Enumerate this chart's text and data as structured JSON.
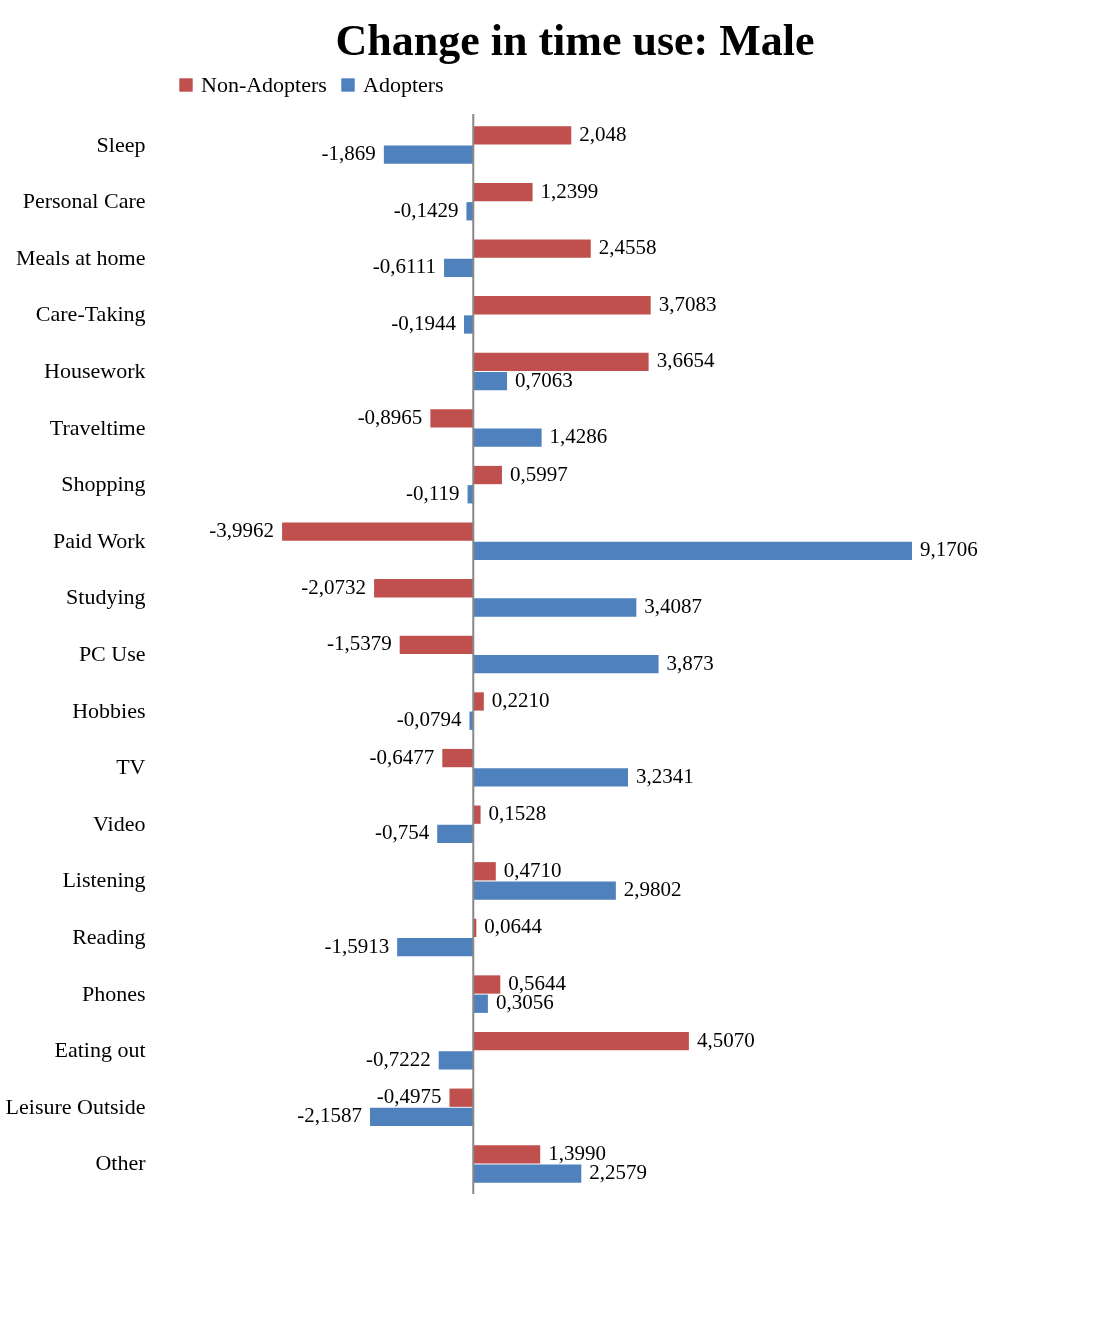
{
  "chart_data": {
    "type": "bar",
    "orientation": "horizontal",
    "title": "Change in time use: Male",
    "legend": "top",
    "categories": [
      "Sleep",
      "Personal Care",
      "Meals at home",
      "Care-Taking",
      "Housework",
      "Traveltime",
      "Shopping",
      "Paid Work",
      "Studying",
      "PC Use",
      "Hobbies",
      "TV",
      "Video",
      "Listening",
      "Reading",
      "Phones",
      "Eating out",
      "Leisure Outside",
      "Other"
    ],
    "series": [
      {
        "name": "Non-Adopters",
        "color": "#c0504d",
        "values": [
          2.048,
          1.2399,
          2.4558,
          3.7083,
          3.6654,
          -0.8965,
          0.5997,
          -3.9962,
          -2.0732,
          -1.5379,
          0.221,
          -0.6477,
          0.1528,
          0.471,
          0.0644,
          0.5644,
          4.507,
          -0.4975,
          1.399
        ],
        "value_labels": [
          "2,048",
          "1,2399",
          "2,4558",
          "3,7083",
          "3,6654",
          "-0,8965",
          "0,5997",
          "-3,9962",
          "-2,0732",
          "-1,5379",
          "0,2210",
          "-0,6477",
          "0,1528",
          "0,4710",
          "0,0644",
          "0,5644",
          "4,5070",
          "-0,4975",
          "1,3990"
        ]
      },
      {
        "name": "Adopters",
        "color": "#4f81bd",
        "values": [
          -1.869,
          -0.1429,
          -0.6111,
          -0.1944,
          0.7063,
          1.4286,
          -0.119,
          9.1706,
          3.4087,
          3.873,
          -0.0794,
          3.2341,
          -0.754,
          2.9802,
          -1.5913,
          0.3056,
          -0.7222,
          -2.1587,
          2.2579
        ],
        "value_labels": [
          "-1,869",
          "-0,1429",
          "-0,6111",
          "-0,1944",
          "0,7063",
          "1,4286",
          "-0,119",
          "9,1706",
          "3,4087",
          "3,873",
          "-0,0794",
          "3,2341",
          "-0,754",
          "2,9802",
          "-1,5913",
          "0,3056",
          "-0,7222",
          "-2,1587",
          "2,2579"
        ]
      }
    ]
  }
}
